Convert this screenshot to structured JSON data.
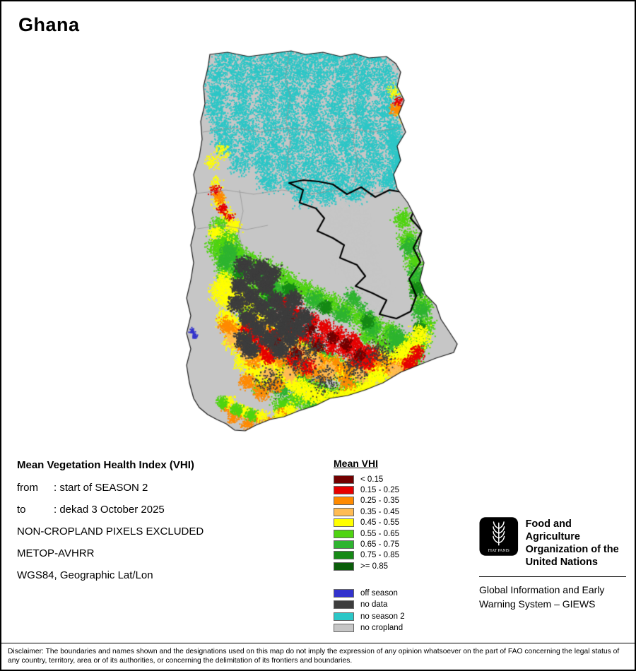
{
  "title": "Ghana",
  "info": {
    "heading": "Mean Vegetation Health Index (VHI)",
    "rows": [
      {
        "label": "from",
        "value": ": start of SEASON 2"
      },
      {
        "label": "to",
        "value": ": dekad 3 October 2025"
      }
    ],
    "lines": [
      "NON-CROPLAND PIXELS EXCLUDED",
      "METOP-AVHRR",
      "WGS84, Geographic Lat/Lon"
    ]
  },
  "legend": {
    "title": "Mean VHI",
    "classes": [
      {
        "label": "< 0.15",
        "color": "#720000"
      },
      {
        "label": "0.15 - 0.25",
        "color": "#e60000"
      },
      {
        "label": "0.25 - 0.35",
        "color": "#ff8a00"
      },
      {
        "label": "0.35 - 0.45",
        "color": "#ffbc54"
      },
      {
        "label": "0.45 - 0.55",
        "color": "#ffff00"
      },
      {
        "label": "0.55 - 0.65",
        "color": "#4fd411"
      },
      {
        "label": "0.65 - 0.75",
        "color": "#2eb430"
      },
      {
        "label": "0.75 - 0.85",
        "color": "#168a16"
      },
      {
        "label": ">= 0.85",
        "color": "#0a5d0a"
      }
    ],
    "others": [
      {
        "label": "off season",
        "color": "#3232cd"
      },
      {
        "label": "no data",
        "color": "#3d3d3d"
      },
      {
        "label": "no season 2",
        "color": "#2cc7c7"
      },
      {
        "label": "no cropland",
        "color": "#c6c6c6"
      }
    ]
  },
  "map": {
    "outline_color": "#1a1a1a",
    "admin_line_color": "#8f8f8f",
    "basin_line_color": "#000000"
  },
  "fao": {
    "org_lines": [
      "Food and Agriculture",
      "Organization of the",
      "United Nations"
    ],
    "giews_lines": [
      "Global Information and Early",
      "Warning System – GIEWS"
    ],
    "logo_motto": "FIAT PANIS"
  },
  "disclaimer": {
    "text": "Disclaimer: The boundaries and names shown and the designations used on this map do not imply the expression of any opinion whatsoever on the part of FAO concerning the legal status of any country, territory, area or of its authorities, or concerning the delimitation of its frontiers and boundaries."
  }
}
